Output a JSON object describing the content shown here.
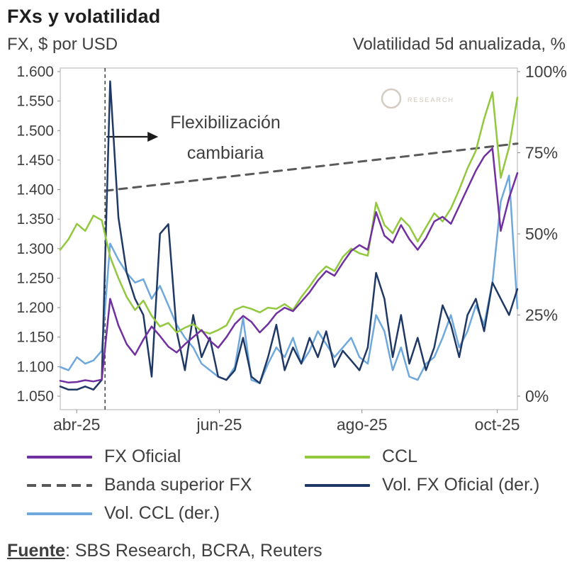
{
  "header": {
    "title": "FXs y volatilidad",
    "left_axis_title": "FX, $ por USD",
    "right_axis_title": "Volatilidad 5d anualizada, %"
  },
  "source": {
    "label": "Fuente",
    "rest": ": SBS Research, BCRA, Reuters"
  },
  "legend": {
    "items": [
      {
        "label": "FX Oficial",
        "color": "#7030A0",
        "dash": false
      },
      {
        "label": "CCL",
        "color": "#92C83D",
        "dash": false
      },
      {
        "label": "Banda superior FX",
        "color": "#595959",
        "dash": true
      },
      {
        "label": "Vol. FX Oficial (der.)",
        "color": "#1F3864",
        "dash": false
      },
      {
        "label": "Vol. CCL (der.)",
        "color": "#6FA8DC",
        "dash": false
      }
    ]
  },
  "chart_data": {
    "type": "line",
    "title": "FXs y volatilidad",
    "xlabel": "",
    "ylabel_left": "FX, $ por USD",
    "ylabel_right": "Volatilidad 5d anualizada, %",
    "grid": false,
    "legend_position": "bottom",
    "x_axis": {
      "ticks": [
        {
          "label": "abr-25",
          "pos": 0.036
        },
        {
          "label": "jun-25",
          "pos": 0.348
        },
        {
          "label": "ago-25",
          "pos": 0.66
        },
        {
          "label": "oct-25",
          "pos": 0.956
        }
      ]
    },
    "y_left": {
      "min": 1.05,
      "max": 1.6,
      "step": 0.05,
      "ticks": [
        "1.600",
        "1.550",
        "1.500",
        "1.450",
        "1.400",
        "1.350",
        "1.300",
        "1.250",
        "1.200",
        "1.150",
        "1.100",
        "1.050"
      ]
    },
    "y_right": {
      "min": 0,
      "max": 100,
      "ticks": [
        {
          "label": "100%",
          "value": 100
        },
        {
          "label": "75%",
          "value": 75
        },
        {
          "label": "50%",
          "value": 50
        },
        {
          "label": "25%",
          "value": 25
        },
        {
          "label": "0%",
          "value": 0
        }
      ]
    },
    "event_line": {
      "pos": 0.098,
      "annotation_lines": [
        "Flexibilización",
        "cambiaria"
      ]
    },
    "watermark": "RESEARCH",
    "series": [
      {
        "name": "FX Oficial",
        "axis": "left",
        "color": "#7030A0",
        "style": "solid",
        "values": [
          1.076,
          1.073,
          1.074,
          1.077,
          1.075,
          1.078,
          1.215,
          1.17,
          1.138,
          1.12,
          1.146,
          1.168,
          1.152,
          1.134,
          1.124,
          1.138,
          1.15,
          1.162,
          1.144,
          1.132,
          1.15,
          1.172,
          1.186,
          1.176,
          1.158,
          1.172,
          1.19,
          1.2,
          1.194,
          1.21,
          1.226,
          1.246,
          1.262,
          1.254,
          1.276,
          1.296,
          1.306,
          1.298,
          1.362,
          1.322,
          1.31,
          1.34,
          1.316,
          1.298,
          1.318,
          1.346,
          1.354,
          1.342,
          1.372,
          1.402,
          1.432,
          1.456,
          1.47,
          1.33,
          1.386,
          1.428
        ]
      },
      {
        "name": "CCL",
        "axis": "left",
        "color": "#92C83D",
        "style": "solid",
        "values": [
          1.298,
          1.316,
          1.342,
          1.33,
          1.356,
          1.348,
          1.286,
          1.25,
          1.218,
          1.196,
          1.212,
          1.186,
          1.168,
          1.174,
          1.158,
          1.166,
          1.172,
          1.16,
          1.156,
          1.162,
          1.17,
          1.196,
          1.202,
          1.198,
          1.192,
          1.2,
          1.198,
          1.206,
          1.196,
          1.218,
          1.236,
          1.256,
          1.27,
          1.262,
          1.286,
          1.3,
          1.292,
          1.288,
          1.378,
          1.34,
          1.326,
          1.352,
          1.338,
          1.312,
          1.336,
          1.36,
          1.346,
          1.368,
          1.4,
          1.436,
          1.466,
          1.52,
          1.565,
          1.42,
          1.472,
          1.556
        ]
      },
      {
        "name": "Banda superior FX",
        "axis": "left",
        "color": "#595959",
        "style": "dashed",
        "x": [
          0.098,
          1.0
        ],
        "values": [
          1.398,
          1.478
        ]
      },
      {
        "name": "Vol. FX Oficial (der.)",
        "axis": "right",
        "color": "#1F3864",
        "style": "solid",
        "values": [
          3,
          2,
          2,
          3,
          2,
          5,
          97,
          55,
          38,
          30,
          25,
          6,
          50,
          53,
          20,
          8,
          25,
          12,
          18,
          6,
          5,
          8,
          18,
          6,
          4,
          12,
          22,
          8,
          15,
          10,
          18,
          12,
          20,
          9,
          14,
          11,
          8,
          15,
          38,
          30,
          12,
          25,
          10,
          18,
          8,
          15,
          28,
          22,
          12,
          25,
          30,
          20,
          35,
          30,
          25,
          33
        ]
      },
      {
        "name": "Vol. CCL (der.)",
        "axis": "right",
        "color": "#6FA8DC",
        "style": "solid",
        "values": [
          9,
          8,
          12,
          10,
          11,
          14,
          47,
          42,
          38,
          35,
          36,
          30,
          34,
          28,
          22,
          18,
          15,
          10,
          8,
          6,
          5,
          9,
          24,
          5,
          4,
          10,
          15,
          12,
          18,
          10,
          14,
          20,
          16,
          12,
          15,
          18,
          12,
          10,
          25,
          20,
          8,
          15,
          6,
          5,
          10,
          12,
          18,
          25,
          15,
          20,
          28,
          22,
          35,
          60,
          68,
          27
        ]
      }
    ]
  }
}
